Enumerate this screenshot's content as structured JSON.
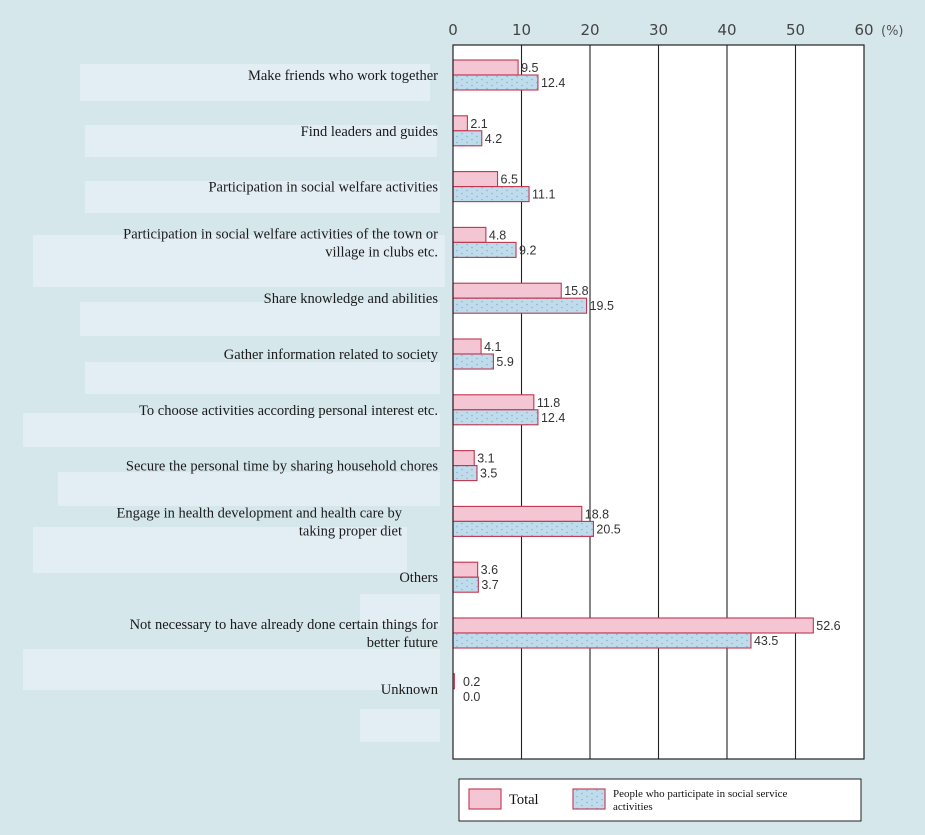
{
  "chart_data": {
    "type": "bar",
    "orientation": "horizontal",
    "x_unit": "(%)",
    "xlim": [
      0,
      60
    ],
    "x_ticks": [
      "0",
      "10",
      "20",
      "30",
      "40",
      "50",
      "60"
    ],
    "grid": true,
    "legend_position": "bottom",
    "categories": [
      [
        "Make friends who work together"
      ],
      [
        "Find leaders and guides"
      ],
      [
        "Participation in social welfare activities"
      ],
      [
        "Participation in social welfare activities of the town or",
        "village in clubs etc."
      ],
      [
        "Share knowledge and abilities"
      ],
      [
        "Gather information related to society"
      ],
      [
        "To choose activities according personal interest etc."
      ],
      [
        "Secure the personal time by sharing household chores"
      ],
      [
        "Engage in health development and health care by",
        "taking proper diet"
      ],
      [
        "Others"
      ],
      [
        "Not necessary to have already done certain things for",
        "better future"
      ],
      [
        "Unknown"
      ]
    ],
    "series": [
      {
        "name": "Total",
        "color": "#f4c6d4",
        "values": [
          9.5,
          2.1,
          6.5,
          4.8,
          15.8,
          4.1,
          11.8,
          3.1,
          18.8,
          3.6,
          52.6,
          0.2
        ],
        "labels": [
          "9.5",
          "2.1",
          "6.5",
          "4.8",
          "15.8",
          "4.1",
          "11.8",
          "3.1",
          "18.8",
          "3.6",
          "52.6",
          "0.2"
        ]
      },
      {
        "name": "People who participate in social service activities",
        "legend_lines": [
          "People who participate in social service",
          "activities"
        ],
        "color": "#bfdcec",
        "values": [
          12.4,
          4.2,
          11.1,
          9.2,
          19.5,
          5.9,
          12.4,
          3.5,
          20.5,
          3.7,
          43.5,
          0.0
        ],
        "labels": [
          "12.4",
          "4.2",
          "11.1",
          "9.2",
          "19.5",
          "5.9",
          "12.4",
          "3.5",
          "20.5",
          "3.7",
          "43.5",
          "0.0"
        ]
      }
    ]
  }
}
